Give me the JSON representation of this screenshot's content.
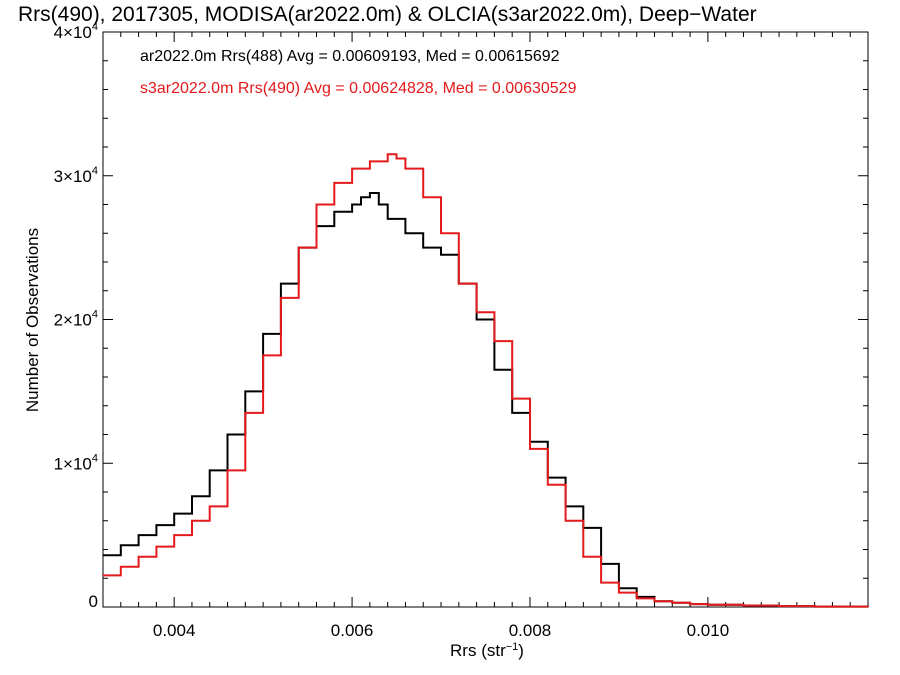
{
  "chart_data": {
    "type": "line",
    "title": "Rrs(490), 2017305, MODISA(ar2022.0m) & OLCIA(s3ar2022.0m), Deep−Water",
    "xlabel": "Rrs (str",
    "xlabel_sup": "−1",
    "xlabel_end": ")",
    "ylabel": "Number of Observations",
    "xlim": [
      0.0032,
      0.0118
    ],
    "ylim": [
      0,
      40000
    ],
    "xticks": [
      {
        "value": 0.004,
        "label": "0.004"
      },
      {
        "value": 0.006,
        "label": "0.006"
      },
      {
        "value": 0.008,
        "label": "0.008"
      },
      {
        "value": 0.01,
        "label": "0.010"
      }
    ],
    "yticks": [
      {
        "value": 0,
        "label": "0",
        "base": "",
        "exp": ""
      },
      {
        "value": 10000,
        "label": "",
        "base": "1×10",
        "exp": "4"
      },
      {
        "value": 20000,
        "label": "",
        "base": "2×10",
        "exp": "4"
      },
      {
        "value": 30000,
        "label": "",
        "base": "3×10",
        "exp": "4"
      },
      {
        "value": 40000,
        "label": "",
        "base": "4×10",
        "exp": "4"
      }
    ],
    "grid": false,
    "legend_position": "top-left",
    "series": [
      {
        "label": "ar2022.0m Rrs(488) Avg = 0.00609193, Med = 0.00615692",
        "color": "#000000",
        "x": [
          0.0032,
          0.0034,
          0.0036,
          0.0038,
          0.004,
          0.0042,
          0.0044,
          0.0046,
          0.0048,
          0.005,
          0.0052,
          0.0054,
          0.0056,
          0.0058,
          0.006,
          0.0061,
          0.0062,
          0.0063,
          0.0064,
          0.0066,
          0.0068,
          0.007,
          0.0072,
          0.0074,
          0.0076,
          0.0078,
          0.008,
          0.0082,
          0.0084,
          0.0086,
          0.0088,
          0.009,
          0.0092,
          0.0094,
          0.0096,
          0.0098,
          0.01,
          0.0104,
          0.0108,
          0.0112,
          0.0118
        ],
        "y": [
          3600,
          4300,
          5000,
          5700,
          6500,
          7700,
          9500,
          12000,
          15000,
          19000,
          22500,
          25000,
          26500,
          27500,
          28000,
          28500,
          28800,
          28000,
          27000,
          26000,
          25000,
          24500,
          22500,
          20000,
          16500,
          13500,
          11500,
          9000,
          7000,
          5500,
          3000,
          1300,
          700,
          400,
          300,
          200,
          150,
          100,
          60,
          30,
          0
        ]
      },
      {
        "label": "s3ar2022.0m Rrs(490) Avg = 0.00624828, Med = 0.00630529",
        "color": "#e41a1c",
        "x": [
          0.0032,
          0.0034,
          0.0036,
          0.0038,
          0.004,
          0.0042,
          0.0044,
          0.0046,
          0.0048,
          0.005,
          0.0052,
          0.0054,
          0.0056,
          0.0058,
          0.006,
          0.0062,
          0.0064,
          0.0065,
          0.0066,
          0.0068,
          0.007,
          0.0072,
          0.0074,
          0.0076,
          0.0078,
          0.008,
          0.0082,
          0.0084,
          0.0086,
          0.0088,
          0.009,
          0.0092,
          0.0094,
          0.0096,
          0.0098,
          0.01,
          0.0104,
          0.0108,
          0.0112,
          0.0118
        ],
        "y": [
          2200,
          2800,
          3500,
          4200,
          5000,
          6000,
          7000,
          9500,
          13500,
          17500,
          21500,
          25000,
          28000,
          29500,
          30500,
          31000,
          31500,
          31200,
          30500,
          28500,
          26000,
          22500,
          20500,
          18500,
          14500,
          11000,
          8500,
          6000,
          3500,
          1700,
          1000,
          600,
          400,
          300,
          200,
          150,
          100,
          60,
          30,
          0
        ]
      }
    ]
  }
}
